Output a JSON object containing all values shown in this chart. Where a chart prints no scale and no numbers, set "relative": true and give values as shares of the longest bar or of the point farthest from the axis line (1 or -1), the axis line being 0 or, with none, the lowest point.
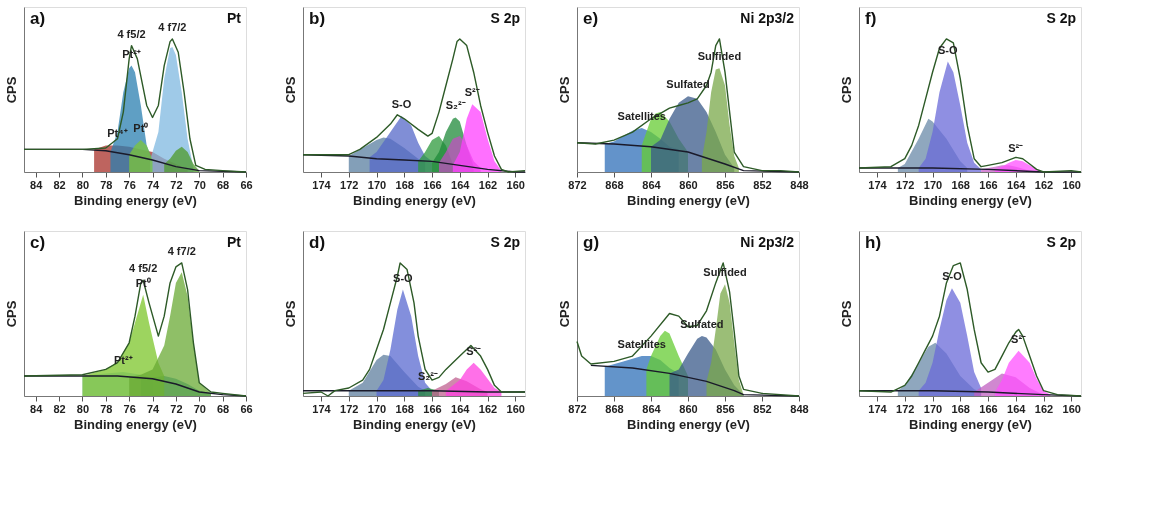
{
  "chart_data": [
    {
      "type": "area",
      "title": "a)",
      "subtitle": "Pt",
      "xlabel": "Binding energy (eV)",
      "ylabel": "CPS",
      "relative": true,
      "tick_labels": "x",
      "xlim": [
        85,
        66
      ],
      "xticks": [
        84,
        82,
        80,
        78,
        76,
        74,
        72,
        70,
        68,
        66
      ],
      "series": [
        {
          "color": "#a8302a",
          "x": [
            79,
            78,
            77,
            76,
            75,
            74,
            73,
            72,
            71
          ],
          "values": [
            0.17,
            0.2,
            0.2,
            0.19,
            0.17,
            0.15,
            0.1,
            0.06,
            0.02
          ]
        },
        {
          "color": "#2a7fb0",
          "x": [
            77.6,
            77,
            76.5,
            76,
            75.8,
            75.5,
            75,
            74.5,
            74
          ],
          "values": [
            0.15,
            0.3,
            0.6,
            0.78,
            0.8,
            0.75,
            0.5,
            0.2,
            0.09
          ]
        },
        {
          "color": "#7fb8e0",
          "x": [
            74.2,
            73.5,
            73,
            72.5,
            72.3,
            72,
            71.5,
            71,
            70.5
          ],
          "values": [
            0.09,
            0.3,
            0.7,
            0.93,
            0.94,
            0.88,
            0.6,
            0.25,
            0.03
          ]
        },
        {
          "color": "#7cc63a",
          "x": [
            76,
            75.5,
            75,
            74.5,
            74
          ],
          "values": [
            0.13,
            0.2,
            0.24,
            0.2,
            0.09
          ]
        },
        {
          "color": "#4d9a2a",
          "x": [
            73,
            72.5,
            72,
            71.5,
            71,
            70.5,
            70
          ],
          "values": [
            0.06,
            0.1,
            0.16,
            0.19,
            0.15,
            0.06,
            0.01
          ]
        },
        {
          "type": "line",
          "color": "#1a1a2a",
          "x": [
            85,
            80,
            78,
            76,
            74,
            72,
            70,
            66
          ],
          "values": [
            0.17,
            0.17,
            0.16,
            0.13,
            0.09,
            0.04,
            0.01,
            0
          ]
        },
        {
          "type": "line",
          "color": "#2d5a27",
          "x": [
            85,
            80,
            78,
            77,
            76.5,
            76,
            75.8,
            75.3,
            74.5,
            74,
            73.5,
            73,
            72.5,
            72.3,
            71.8,
            71.3,
            70.8,
            70.3,
            69.5,
            68,
            66
          ],
          "values": [
            0.17,
            0.17,
            0.18,
            0.25,
            0.45,
            0.85,
            0.95,
            0.85,
            0.5,
            0.41,
            0.5,
            0.8,
            0.98,
            1,
            0.9,
            0.6,
            0.25,
            0.05,
            0.02,
            0.01,
            0
          ]
        }
      ],
      "annotations": [
        {
          "text": "4 f5/2",
          "x": 75.8,
          "y": 0.95
        },
        {
          "text": "4 f7/2",
          "x": 72.3,
          "y": 1
        },
        {
          "text": "Pt²⁺",
          "x": 75.8,
          "y": 0.8
        },
        {
          "text": "Pt⁰",
          "x": 75,
          "y": 0.24
        },
        {
          "text": "Pt⁴⁺",
          "x": 77,
          "y": 0.2
        }
      ]
    },
    {
      "type": "area",
      "title": "b)",
      "subtitle": "S 2p",
      "xlabel": "Binding energy (eV)",
      "ylabel": "CPS",
      "relative": true,
      "tick_labels": "x",
      "xlim": [
        175.3,
        159.3
      ],
      "xticks": [
        174,
        172,
        170,
        168,
        166,
        164,
        162,
        160
      ],
      "series": [
        {
          "color": "#5a7fa0",
          "x": [
            172,
            171,
            170,
            169.5,
            169,
            168,
            167,
            166.5
          ],
          "values": [
            0.12,
            0.18,
            0.24,
            0.26,
            0.25,
            0.18,
            0.1,
            0.08
          ]
        },
        {
          "color": "#5568c8",
          "x": [
            170.5,
            170,
            169,
            168.2,
            167.5,
            167,
            166.5,
            166
          ],
          "values": [
            0.11,
            0.15,
            0.3,
            0.42,
            0.35,
            0.22,
            0.12,
            0.08
          ]
        },
        {
          "color": "#2e9a3c",
          "x": [
            167,
            166.5,
            166,
            165.5,
            165,
            164.5
          ],
          "values": [
            0.08,
            0.15,
            0.24,
            0.27,
            0.2,
            0.06
          ]
        },
        {
          "color": "#1f8a3a",
          "x": [
            166,
            165.5,
            165,
            164.5,
            164.3,
            164,
            163.5,
            163
          ],
          "values": [
            0.07,
            0.15,
            0.3,
            0.4,
            0.41,
            0.38,
            0.2,
            0.04
          ]
        },
        {
          "color": "#c050c0",
          "x": [
            165.5,
            165,
            164.5,
            164,
            163.5,
            163,
            162.5
          ],
          "values": [
            0.07,
            0.15,
            0.25,
            0.27,
            0.2,
            0.08,
            0.03
          ]
        },
        {
          "color": "#ff40ff",
          "x": [
            164.5,
            164,
            163.5,
            163.1,
            162.5,
            162,
            161.5,
            161
          ],
          "values": [
            0.05,
            0.15,
            0.4,
            0.51,
            0.45,
            0.25,
            0.08,
            0.01
          ]
        },
        {
          "type": "line",
          "color": "#1a1a2a",
          "x": [
            175.3,
            172,
            170,
            168,
            166,
            164,
            162,
            160,
            159.3
          ],
          "values": [
            0.13,
            0.12,
            0.1,
            0.09,
            0.08,
            0.05,
            0.02,
            0,
            0
          ]
        },
        {
          "type": "line",
          "color": "#2d5a27",
          "x": [
            175.3,
            172,
            171.2,
            170,
            169,
            168.5,
            168,
            167,
            166.3,
            166,
            165.5,
            165,
            164.5,
            164.2,
            164,
            163.5,
            163,
            162.5,
            162,
            161.5,
            161,
            160.5,
            159.3
          ],
          "values": [
            0.13,
            0.13,
            0.17,
            0.26,
            0.36,
            0.43,
            0.4,
            0.32,
            0.27,
            0.29,
            0.45,
            0.65,
            0.85,
            0.98,
            1,
            0.95,
            0.75,
            0.5,
            0.3,
            0.12,
            0.02,
            0,
            0.01
          ]
        }
      ],
      "annotations": [
        {
          "text": "S-O",
          "x": 168.2,
          "y": 0.42
        },
        {
          "text": "S₂²⁻",
          "x": 164.3,
          "y": 0.41
        },
        {
          "text": "S²⁻",
          "x": 163.1,
          "y": 0.51
        }
      ]
    },
    {
      "type": "area",
      "title": "e)",
      "subtitle": "Ni 2p3/2",
      "xlabel": "Binding energy (eV)",
      "ylabel": "CPS",
      "relative": true,
      "tick_labels": "x",
      "xlim": [
        872,
        848
      ],
      "xticks": [
        872,
        868,
        864,
        860,
        856,
        852,
        848
      ],
      "series": [
        {
          "color": "#2f6fb8",
          "x": [
            869,
            868,
            867,
            866,
            865,
            864,
            863,
            862,
            861
          ],
          "values": [
            0.21,
            0.23,
            0.27,
            0.31,
            0.33,
            0.3,
            0.25,
            0.19,
            0.17
          ]
        },
        {
          "color": "#66cc33",
          "x": [
            865,
            864,
            863.5,
            863,
            862,
            861,
            860
          ],
          "values": [
            0.2,
            0.4,
            0.44,
            0.45,
            0.38,
            0.25,
            0.15
          ]
        },
        {
          "color": "#3a5a8a",
          "x": [
            864,
            863,
            862,
            861,
            860,
            859,
            858,
            857,
            856,
            855
          ],
          "values": [
            0.19,
            0.24,
            0.4,
            0.52,
            0.57,
            0.55,
            0.45,
            0.3,
            0.13,
            0.03
          ]
        },
        {
          "color": "#7aa84a",
          "x": [
            858.5,
            858,
            857.5,
            857,
            856.6,
            856,
            855.5,
            855,
            854.5
          ],
          "values": [
            0.1,
            0.3,
            0.6,
            0.77,
            0.78,
            0.65,
            0.35,
            0.12,
            0.03
          ]
        },
        {
          "type": "line",
          "color": "#1a1a2a",
          "x": [
            872,
            868,
            864,
            860,
            856,
            854,
            848
          ],
          "values": [
            0.22,
            0.21,
            0.19,
            0.15,
            0.06,
            0.01,
            0
          ]
        },
        {
          "type": "line",
          "color": "#2d5a27",
          "x": [
            872,
            870,
            868,
            866,
            864,
            862,
            861,
            860,
            859,
            858,
            857.5,
            857,
            856.6,
            856,
            855.5,
            855,
            854,
            852,
            850,
            848
          ],
          "values": [
            0.22,
            0.21,
            0.24,
            0.3,
            0.4,
            0.48,
            0.5,
            0.52,
            0.55,
            0.65,
            0.75,
            0.95,
            1,
            0.75,
            0.45,
            0.15,
            0.04,
            0.01,
            0.01,
            0
          ]
        }
      ],
      "annotations": [
        {
          "text": "Satellites",
          "x": 865,
          "y": 0.33
        },
        {
          "text": "Sulfided",
          "x": 856.6,
          "y": 0.78
        },
        {
          "text": "Sulfated",
          "x": 860,
          "y": 0.57
        }
      ]
    },
    {
      "type": "area",
      "title": "f)",
      "subtitle": "S 2p",
      "xlabel": "Binding energy (eV)",
      "ylabel": "CPS",
      "relative": true,
      "tick_labels": "x",
      "xlim": [
        175.3,
        159.3
      ],
      "xticks": [
        174,
        172,
        170,
        168,
        166,
        164,
        162,
        160
      ],
      "series": [
        {
          "color": "#6a8aa8",
          "x": [
            172.5,
            172,
            171,
            170.3,
            170,
            169,
            168,
            167.5
          ],
          "values": [
            0.03,
            0.06,
            0.25,
            0.4,
            0.38,
            0.25,
            0.08,
            0.03
          ]
        },
        {
          "color": "#6a6ad8",
          "x": [
            171,
            170.5,
            170,
            169.5,
            168.9,
            168.5,
            168,
            167.5,
            167,
            166.5
          ],
          "values": [
            0.03,
            0.1,
            0.3,
            0.6,
            0.83,
            0.75,
            0.5,
            0.22,
            0.07,
            0.02
          ]
        },
        {
          "color": "#c860c8",
          "x": [
            166.5,
            165.5,
            165,
            164.5,
            164,
            163
          ],
          "values": [
            0.02,
            0.04,
            0.05,
            0.05,
            0.04,
            0.01
          ]
        },
        {
          "color": "#ff50ff",
          "x": [
            165.5,
            165,
            164.5,
            164,
            163.5,
            163,
            162.5,
            162
          ],
          "values": [
            0.02,
            0.04,
            0.07,
            0.09,
            0.08,
            0.05,
            0.02,
            0
          ]
        },
        {
          "type": "line",
          "color": "#1a1a2a",
          "x": [
            175.3,
            170,
            166,
            162,
            159.3
          ],
          "values": [
            0.03,
            0.03,
            0.02,
            0,
            0
          ]
        },
        {
          "type": "line",
          "color": "#2d5a27",
          "x": [
            175.3,
            173,
            172,
            171.5,
            171,
            170.5,
            170,
            169.5,
            169,
            168.5,
            168,
            167.5,
            167,
            166.5,
            166,
            165,
            164,
            163.5,
            163,
            162.5,
            162,
            160,
            159.3
          ],
          "values": [
            0.03,
            0.04,
            0.1,
            0.2,
            0.35,
            0.55,
            0.75,
            0.93,
            1,
            0.97,
            0.7,
            0.35,
            0.1,
            0.04,
            0.05,
            0.07,
            0.11,
            0.1,
            0.06,
            0.02,
            0,
            0.01,
            0
          ]
        }
      ],
      "annotations": [
        {
          "text": "S-O",
          "x": 168.9,
          "y": 0.83
        },
        {
          "text": "S²⁻",
          "x": 164,
          "y": 0.09
        }
      ]
    },
    {
      "type": "area",
      "title": "c)",
      "subtitle": "Pt",
      "xlabel": "Binding energy (eV)",
      "ylabel": "CPS",
      "relative": true,
      "tick_labels": "x",
      "xlim": [
        85,
        66
      ],
      "xticks": [
        84,
        82,
        80,
        78,
        76,
        74,
        72,
        70,
        68,
        66
      ],
      "series": [
        {
          "color": "#8ac0dc",
          "x": [
            80,
            78,
            76.5,
            75,
            74
          ],
          "values": [
            0.15,
            0.17,
            0.18,
            0.16,
            0.13
          ]
        },
        {
          "color": "#2a8ab0",
          "x": [
            75,
            74,
            73,
            72,
            71,
            70,
            69
          ],
          "values": [
            0.13,
            0.14,
            0.15,
            0.13,
            0.09,
            0.04,
            0.02
          ]
        },
        {
          "color": "#7cc62a",
          "x": [
            80,
            78,
            77,
            76,
            75.5,
            74.8,
            74.3,
            73.5,
            73
          ],
          "values": [
            0.15,
            0.2,
            0.26,
            0.4,
            0.55,
            0.76,
            0.55,
            0.25,
            0.15
          ]
        },
        {
          "color": "#6aaa34",
          "x": [
            76,
            75,
            74,
            73,
            72.5,
            72,
            71.5,
            71,
            70.5,
            70,
            69
          ],
          "values": [
            0.14,
            0.16,
            0.2,
            0.38,
            0.6,
            0.85,
            0.93,
            0.75,
            0.4,
            0.1,
            0.02
          ]
        },
        {
          "type": "line",
          "color": "#1a1a2a",
          "x": [
            85,
            80,
            77,
            74,
            72,
            70,
            68,
            66
          ],
          "values": [
            0.15,
            0.15,
            0.15,
            0.13,
            0.09,
            0.03,
            0.01,
            0
          ]
        },
        {
          "type": "line",
          "color": "#2d5a27",
          "x": [
            85,
            80,
            78,
            77,
            76,
            75.5,
            75,
            74.8,
            74.3,
            73.5,
            73,
            72.5,
            72,
            71.5,
            71,
            70.5,
            70,
            69,
            68,
            66
          ],
          "values": [
            0.15,
            0.16,
            0.2,
            0.25,
            0.4,
            0.6,
            0.85,
            0.87,
            0.7,
            0.45,
            0.6,
            0.85,
            0.97,
            1,
            0.8,
            0.4,
            0.1,
            0.03,
            0.02,
            0
          ]
        }
      ],
      "annotations": [
        {
          "text": "4 f5/2",
          "x": 74.8,
          "y": 0.87
        },
        {
          "text": "4 f7/2",
          "x": 71.5,
          "y": 1
        },
        {
          "text": "Pt⁰",
          "x": 74.8,
          "y": 0.76
        },
        {
          "text": "Pt²⁺",
          "x": 76.5,
          "y": 0.18
        }
      ]
    },
    {
      "type": "area",
      "title": "d)",
      "subtitle": "S 2p",
      "xlabel": "Binding energy (eV)",
      "ylabel": "CPS",
      "relative": true,
      "tick_labels": "x",
      "xlim": [
        175.3,
        159.3
      ],
      "xticks": [
        174,
        172,
        170,
        168,
        166,
        164,
        162,
        160
      ],
      "series": [
        {
          "color": "#5f7f9f",
          "x": [
            172,
            171,
            170,
            169.5,
            169,
            168,
            167,
            166.5
          ],
          "values": [
            0.04,
            0.1,
            0.27,
            0.31,
            0.3,
            0.18,
            0.07,
            0.04
          ]
        },
        {
          "color": "#5a6ad0",
          "x": [
            170,
            169.5,
            169,
            168.5,
            168.1,
            167.5,
            167,
            166.5,
            166
          ],
          "values": [
            0.04,
            0.12,
            0.35,
            0.65,
            0.8,
            0.6,
            0.3,
            0.1,
            0.04
          ]
        },
        {
          "color": "#2a8a3a",
          "x": [
            167,
            166.3,
            165.5
          ],
          "values": [
            0.04,
            0.06,
            0.04
          ]
        },
        {
          "color": "#c06090",
          "x": [
            166,
            165,
            164.3,
            163.5,
            162.5,
            162
          ],
          "values": [
            0.04,
            0.09,
            0.14,
            0.11,
            0.05,
            0.03
          ]
        },
        {
          "color": "#ff40e0",
          "x": [
            165,
            164,
            163.5,
            163,
            162.5,
            162,
            161.5,
            161
          ],
          "values": [
            0.04,
            0.12,
            0.2,
            0.25,
            0.2,
            0.13,
            0.06,
            0.03
          ]
        },
        {
          "type": "line",
          "color": "#1a1a2a",
          "x": [
            175.3,
            166,
            162,
            159.3
          ],
          "values": [
            0.04,
            0.04,
            0.03,
            0.03
          ]
        },
        {
          "type": "line",
          "color": "#2d5a27",
          "x": [
            175.3,
            174,
            173.5,
            173,
            172,
            171,
            170.5,
            170,
            169.5,
            169,
            168.5,
            168.3,
            167.8,
            167.3,
            167,
            166.5,
            166,
            165.5,
            165,
            164,
            163.2,
            162.5,
            162,
            161.5,
            161,
            159.3
          ],
          "values": [
            0.02,
            0.03,
            0,
            0.04,
            0.06,
            0.12,
            0.2,
            0.35,
            0.5,
            0.7,
            0.9,
            1,
            0.95,
            0.7,
            0.45,
            0.2,
            0.12,
            0.14,
            0.2,
            0.3,
            0.38,
            0.3,
            0.2,
            0.08,
            0.03,
            0.03
          ]
        }
      ],
      "annotations": [
        {
          "text": "S-O",
          "x": 168.1,
          "y": 0.8
        },
        {
          "text": "S₂²⁻",
          "x": 166.3,
          "y": 0.06
        },
        {
          "text": "S²⁻",
          "x": 163,
          "y": 0.25
        }
      ]
    },
    {
      "type": "area",
      "title": "g)",
      "subtitle": "Ni 2p3/2",
      "xlabel": "Binding energy (eV)",
      "ylabel": "CPS",
      "relative": true,
      "tick_labels": "x",
      "xlim": [
        872,
        848
      ],
      "xticks": [
        872,
        868,
        864,
        860,
        856,
        852,
        848
      ],
      "series": [
        {
          "color": "#2f70b8",
          "x": [
            869,
            867,
            865,
            864,
            863,
            862,
            861
          ],
          "values": [
            0.22,
            0.26,
            0.3,
            0.3,
            0.27,
            0.21,
            0.17
          ]
        },
        {
          "color": "#66cc33",
          "x": [
            864.5,
            864,
            863,
            862.5,
            862,
            861,
            860
          ],
          "values": [
            0.2,
            0.3,
            0.45,
            0.49,
            0.47,
            0.3,
            0.15
          ]
        },
        {
          "color": "#3a5a8a",
          "x": [
            862,
            861,
            860,
            859,
            858.5,
            858,
            857,
            856,
            855,
            854
          ],
          "values": [
            0.17,
            0.2,
            0.32,
            0.43,
            0.45,
            0.44,
            0.35,
            0.2,
            0.08,
            0.01
          ]
        },
        {
          "color": "#7aa84a",
          "x": [
            858,
            857.5,
            857,
            856.5,
            856,
            855.5,
            855,
            854.5,
            854
          ],
          "values": [
            0.11,
            0.25,
            0.5,
            0.77,
            0.84,
            0.7,
            0.4,
            0.12,
            0.01
          ]
        },
        {
          "type": "line",
          "color": "#1a1a2a",
          "x": [
            870.5,
            866,
            862,
            858,
            855,
            854,
            848
          ],
          "values": [
            0.23,
            0.21,
            0.17,
            0.11,
            0.04,
            0.01,
            0
          ]
        },
        {
          "type": "line",
          "color": "#2d5a27",
          "x": [
            872,
            871.5,
            870.5,
            868,
            866,
            864,
            862,
            861,
            860,
            859,
            858,
            857,
            856.2,
            855.5,
            855,
            854.5,
            854,
            852,
            848
          ],
          "values": [
            0.41,
            0.3,
            0.24,
            0.26,
            0.3,
            0.45,
            0.62,
            0.6,
            0.52,
            0.53,
            0.64,
            0.85,
            1,
            0.78,
            0.48,
            0.15,
            0.05,
            0.02,
            0
          ]
        }
      ],
      "annotations": [
        {
          "text": "Satellites",
          "x": 865,
          "y": 0.3
        },
        {
          "text": "Sulfided",
          "x": 856,
          "y": 0.84
        },
        {
          "text": "Sulfated",
          "x": 858.5,
          "y": 0.45
        }
      ]
    },
    {
      "type": "area",
      "title": "h)",
      "subtitle": "S 2p",
      "xlabel": "Binding energy (eV)",
      "ylabel": "CPS",
      "relative": true,
      "tick_labels": "x",
      "xlim": [
        175.3,
        159.3
      ],
      "xticks": [
        174,
        172,
        170,
        168,
        166,
        164,
        162,
        160
      ],
      "series": [
        {
          "color": "#6a8aa8",
          "x": [
            172.5,
            172,
            171,
            170.3,
            169.8,
            169,
            168,
            167,
            166.5
          ],
          "values": [
            0.04,
            0.08,
            0.25,
            0.37,
            0.4,
            0.32,
            0.15,
            0.05,
            0.03
          ]
        },
        {
          "color": "#6a6ad8",
          "x": [
            171,
            170.5,
            170,
            169.5,
            169,
            168.6,
            168,
            167.5,
            167,
            166.5
          ],
          "values": [
            0.04,
            0.1,
            0.25,
            0.5,
            0.72,
            0.81,
            0.7,
            0.45,
            0.18,
            0.06
          ]
        },
        {
          "color": "#c060c0",
          "x": [
            167,
            166,
            165,
            164,
            163,
            162
          ],
          "values": [
            0.03,
            0.1,
            0.17,
            0.14,
            0.06,
            0.01
          ]
        },
        {
          "color": "#ff50ff",
          "x": [
            165.5,
            165,
            164.5,
            163.8,
            163,
            162.5,
            162,
            161.5
          ],
          "values": [
            0.03,
            0.12,
            0.25,
            0.34,
            0.25,
            0.13,
            0.04,
            0.01
          ]
        },
        {
          "type": "line",
          "color": "#1a1a2a",
          "x": [
            175.3,
            170,
            166,
            162,
            159.3
          ],
          "values": [
            0.04,
            0.04,
            0.03,
            0.01,
            0
          ]
        },
        {
          "type": "line",
          "color": "#2d5a27",
          "x": [
            175.3,
            173,
            172,
            171.5,
            171,
            170.5,
            170,
            169.5,
            169,
            168.5,
            168,
            167.5,
            167,
            166.5,
            166,
            165.5,
            165,
            164.5,
            164,
            163.8,
            163.5,
            163,
            162.5,
            162,
            161,
            159.3
          ],
          "values": [
            0.04,
            0.03,
            0.08,
            0.15,
            0.25,
            0.35,
            0.45,
            0.6,
            0.85,
            0.98,
            1,
            0.8,
            0.5,
            0.25,
            0.18,
            0.2,
            0.3,
            0.4,
            0.48,
            0.5,
            0.45,
            0.3,
            0.15,
            0.04,
            0.01,
            0
          ]
        }
      ],
      "annotations": [
        {
          "text": "S-O",
          "x": 168.6,
          "y": 0.81
        },
        {
          "text": "S²⁻",
          "x": 163.8,
          "y": 0.34
        }
      ]
    }
  ]
}
